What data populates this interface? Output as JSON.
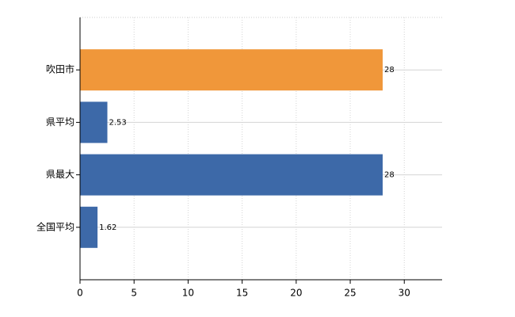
{
  "chart_data": {
    "type": "hbar",
    "categories": [
      "吹田市",
      "県平均",
      "県最大",
      "全国平均"
    ],
    "values": [
      28,
      2.53,
      28,
      1.62
    ],
    "colors": [
      "#f0973a",
      "#3d69a8",
      "#3d69a8",
      "#3d69a8"
    ],
    "xlim": [
      0,
      33.5
    ],
    "xticks": [
      0,
      5,
      10,
      15,
      20,
      25,
      30
    ],
    "grid": true
  }
}
